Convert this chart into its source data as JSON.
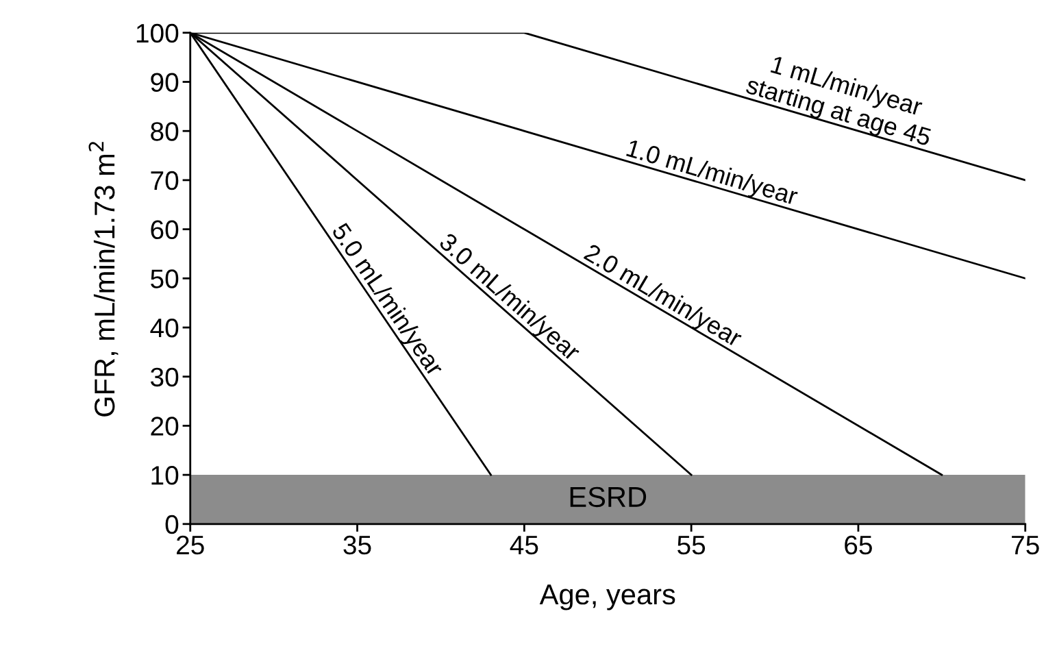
{
  "chart_data": {
    "type": "line",
    "xlabel": "Age, years",
    "ylabel": "GFR, mL/min/1.73 m$^{2}$",
    "xlim": [
      25,
      75
    ],
    "ylim": [
      0,
      100
    ],
    "xticks": [
      25,
      35,
      45,
      55,
      65,
      75
    ],
    "yticks": [
      0,
      10,
      20,
      30,
      40,
      50,
      60,
      70,
      80,
      90,
      100
    ],
    "grid": false,
    "legend": false,
    "marker": "none",
    "line_style": "solid",
    "series": [
      {
        "name": "1 mL/min/year\nstarting at age 45",
        "color": "#000000",
        "x": [
          25,
          45,
          75
        ],
        "values": [
          100,
          100,
          70
        ]
      },
      {
        "name": "1.0 mL/min/year",
        "color": "#000000",
        "x": [
          25,
          75
        ],
        "values": [
          100,
          50
        ]
      },
      {
        "name": "2.0 mL/min/year",
        "color": "#000000",
        "x": [
          25,
          70
        ],
        "values": [
          100,
          10
        ]
      },
      {
        "name": "3.0 mL/min/year",
        "color": "#000000",
        "x": [
          25,
          55
        ],
        "values": [
          100,
          10
        ]
      },
      {
        "name": "5.0 mL/min/year",
        "color": "#000000",
        "x": [
          25,
          43
        ],
        "values": [
          100,
          10
        ]
      }
    ],
    "bands": [
      {
        "axis": "y",
        "from": 0,
        "to": 10,
        "label": "ESRD",
        "color": "#8c8c8c"
      }
    ]
  }
}
